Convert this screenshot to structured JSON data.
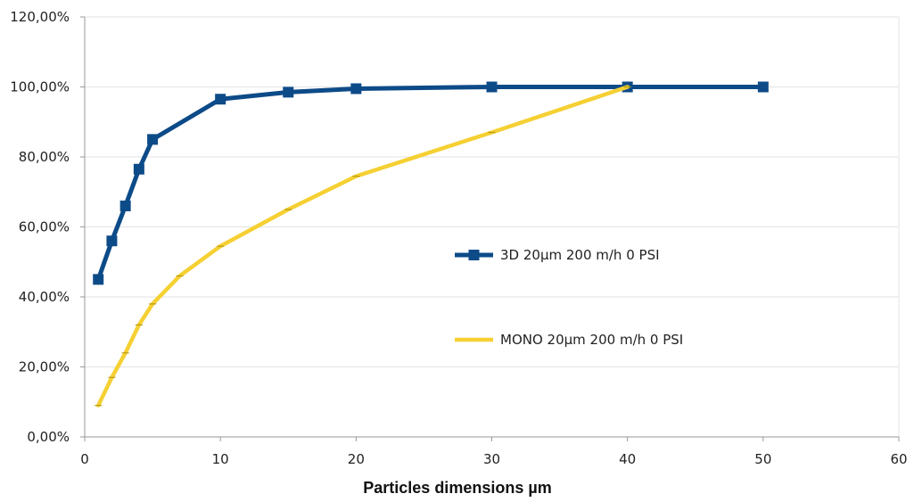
{
  "chart_data": {
    "type": "line",
    "xlabel": "Particles dimensions µm",
    "ylabel": "",
    "xlim": [
      0,
      60
    ],
    "ylim": [
      0,
      1.2
    ],
    "x_ticks": [
      0,
      10,
      20,
      30,
      40,
      50,
      60
    ],
    "y_ticks": [
      0,
      0.2,
      0.4,
      0.6,
      0.8,
      1.0,
      1.2
    ],
    "x_tick_labels": [
      "0",
      "10",
      "20",
      "30",
      "40",
      "50",
      "60"
    ],
    "y_tick_labels": [
      "0,00%",
      "20,00%",
      "40,00%",
      "60,00%",
      "80,00%",
      "100,00%",
      "120,00%"
    ],
    "grid": "horizontal",
    "legend_position": "right-center",
    "series": [
      {
        "name": "3D 20µm  200 m/h  0 PSI",
        "color": "#0d4b88",
        "marker": "square",
        "x": [
          1,
          2,
          3,
          4,
          5,
          10,
          15,
          20,
          30,
          40,
          50
        ],
        "y": [
          0.45,
          0.56,
          0.66,
          0.765,
          0.85,
          0.965,
          0.985,
          0.995,
          1.0,
          1.0,
          1.0
        ]
      },
      {
        "name": "MONO  20µm 200 m/h  0 PSI",
        "color": "#f5d033",
        "marker": "tick",
        "x": [
          1,
          2,
          3,
          4,
          5,
          7,
          10,
          15,
          20,
          30,
          40
        ],
        "y": [
          0.09,
          0.17,
          0.24,
          0.32,
          0.38,
          0.46,
          0.545,
          0.65,
          0.745,
          0.87,
          1.0
        ]
      }
    ]
  }
}
